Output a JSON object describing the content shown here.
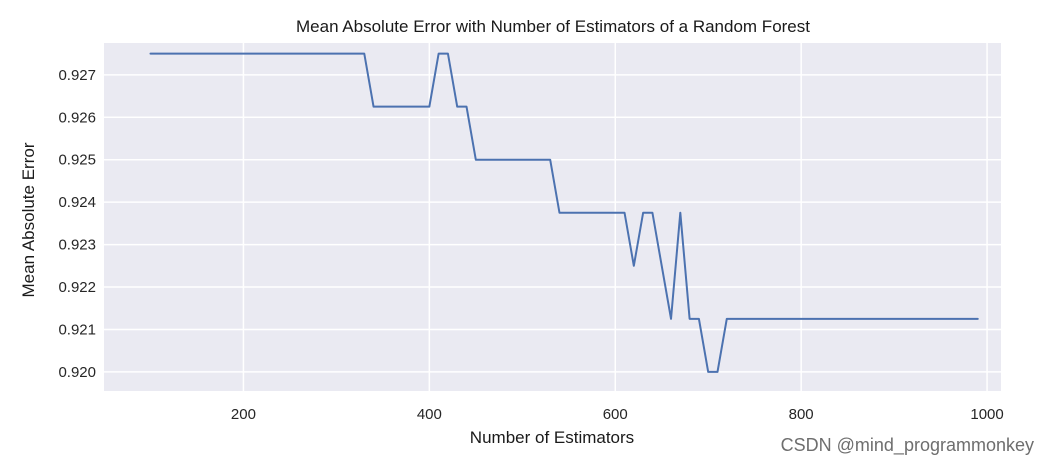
{
  "chart_data": {
    "type": "line",
    "title": "Mean Absolute Error with Number of Estimators of a Random Forest",
    "xlabel": "Number of Estimators",
    "ylabel": "Mean Absolute Error",
    "xlim": [
      50,
      1015
    ],
    "ylim": [
      0.91955,
      0.92775
    ],
    "x_ticks": [
      200,
      400,
      600,
      800,
      1000
    ],
    "x_tick_labels": [
      "200",
      "400",
      "600",
      "800",
      "1000"
    ],
    "y_ticks": [
      0.92,
      0.921,
      0.922,
      0.923,
      0.924,
      0.925,
      0.926,
      0.927
    ],
    "y_tick_labels": [
      "0.920",
      "0.921",
      "0.922",
      "0.923",
      "0.924",
      "0.925",
      "0.926",
      "0.927"
    ],
    "grid": true,
    "style": "seaborn-darkgrid",
    "colors": {
      "background": "#eaeaf2",
      "grid": "#ffffff",
      "line": "#4c72b0"
    },
    "series": [
      {
        "x": [
          100,
          110,
          120,
          130,
          140,
          150,
          160,
          170,
          180,
          190,
          200,
          210,
          220,
          230,
          240,
          250,
          260,
          270,
          280,
          290,
          300,
          310,
          320,
          330,
          340,
          350,
          360,
          370,
          380,
          390,
          400,
          410,
          420,
          430,
          440,
          450,
          460,
          470,
          480,
          490,
          500,
          510,
          520,
          530,
          540,
          550,
          560,
          570,
          580,
          590,
          600,
          610,
          620,
          630,
          640,
          650,
          660,
          670,
          680,
          690,
          700,
          710,
          720,
          730,
          740,
          750,
          760,
          770,
          780,
          790,
          800,
          810,
          820,
          830,
          840,
          850,
          860,
          870,
          880,
          890,
          900,
          910,
          920,
          930,
          940,
          950,
          960,
          970,
          980,
          990
        ],
        "y": [
          0.9275,
          0.9275,
          0.9275,
          0.9275,
          0.9275,
          0.9275,
          0.9275,
          0.9275,
          0.9275,
          0.9275,
          0.9275,
          0.9275,
          0.9275,
          0.9275,
          0.9275,
          0.9275,
          0.9275,
          0.9275,
          0.9275,
          0.9275,
          0.9275,
          0.9275,
          0.9275,
          0.9275,
          0.92625,
          0.92625,
          0.92625,
          0.92625,
          0.92625,
          0.92625,
          0.92625,
          0.9275,
          0.9275,
          0.92625,
          0.92625,
          0.925,
          0.925,
          0.925,
          0.925,
          0.925,
          0.925,
          0.925,
          0.925,
          0.925,
          0.92375,
          0.92375,
          0.92375,
          0.92375,
          0.92375,
          0.92375,
          0.92375,
          0.92375,
          0.9225,
          0.92375,
          0.92375,
          0.9225,
          0.92125,
          0.92375,
          0.92125,
          0.92125,
          0.92,
          0.92,
          0.92125,
          0.92125,
          0.92125,
          0.92125,
          0.92125,
          0.92125,
          0.92125,
          0.92125,
          0.92125,
          0.92125,
          0.92125,
          0.92125,
          0.92125,
          0.92125,
          0.92125,
          0.92125,
          0.92125,
          0.92125,
          0.92125,
          0.92125,
          0.92125,
          0.92125,
          0.92125,
          0.92125,
          0.92125,
          0.92125,
          0.92125,
          0.92125
        ]
      }
    ]
  },
  "watermark": "CSDN @mind_programmonkey"
}
